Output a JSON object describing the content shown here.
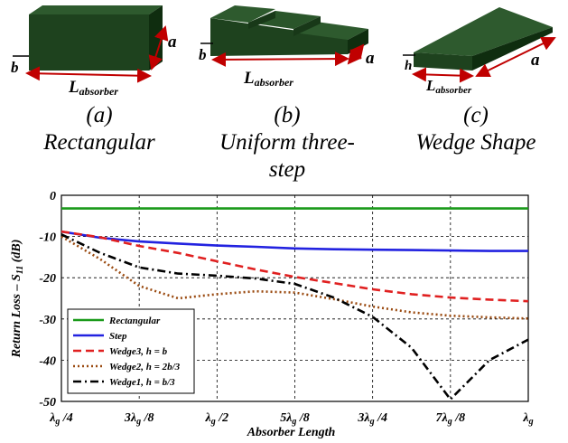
{
  "figures": [
    {
      "letter": "(a)",
      "name": "Rectangular",
      "dims": {
        "height": "b",
        "width": "a",
        "length": "L",
        "length_sub": "absorber"
      }
    },
    {
      "letter": "(b)",
      "name": "Uniform three-",
      "name2": "step",
      "dims": {
        "height": "b",
        "width": "a",
        "length": "L",
        "length_sub": "absorber"
      }
    },
    {
      "letter": "(c)",
      "name": "Wedge Shape",
      "dims": {
        "height": "h",
        "width": "a",
        "length": "L",
        "length_sub": "absorber"
      }
    }
  ],
  "colors": {
    "block_top": "#285028",
    "block_front": "#1a3a1a",
    "block_side": "#102a10",
    "arrow": "#c00000"
  },
  "chart_data": {
    "type": "line",
    "xlabel": "Absorber Length",
    "ylabel": "Return Loss – S11 (dB)",
    "ylabel_main": "Return Loss – S",
    "ylabel_sub": "11",
    "ylabel_unit": " (dB)",
    "x_ticks": [
      {
        "value": 0.25,
        "main": "λ",
        "sub": "g",
        "rest": " /4"
      },
      {
        "value": 0.375,
        "main": "3λ",
        "sub": "g",
        "rest": " /8"
      },
      {
        "value": 0.5,
        "main": "λ",
        "sub": "g",
        "rest": " /2"
      },
      {
        "value": 0.625,
        "main": "5λ",
        "sub": "g",
        "rest": " /8"
      },
      {
        "value": 0.75,
        "main": "3λ",
        "sub": "g",
        "rest": " /4"
      },
      {
        "value": 0.875,
        "main": "7λ",
        "sub": "g",
        "rest": " /8"
      },
      {
        "value": 1.0,
        "main": "λ",
        "sub": "g",
        "rest": ""
      }
    ],
    "y_ticks": [
      0,
      -10,
      -20,
      -30,
      -40,
      -50
    ],
    "xlim": [
      0.25,
      1.0
    ],
    "ylim": [
      -50,
      0
    ],
    "grid": true,
    "legend_position": "bottom-left",
    "x": [
      0.25,
      0.3125,
      0.375,
      0.4375,
      0.5,
      0.5625,
      0.625,
      0.6875,
      0.75,
      0.8125,
      0.875,
      0.9375,
      1.0
    ],
    "series": [
      {
        "name": "Rectangular",
        "color": "#1a9a1a",
        "dash": "solid",
        "values": [
          -3.2,
          -3.2,
          -3.2,
          -3.2,
          -3.2,
          -3.2,
          -3.2,
          -3.2,
          -3.2,
          -3.2,
          -3.2,
          -3.2,
          -3.2
        ]
      },
      {
        "name": "Step",
        "color": "#2222e0",
        "dash": "solid",
        "values": [
          -8.8,
          -10.3,
          -11.2,
          -11.7,
          -12.2,
          -12.5,
          -12.9,
          -13.1,
          -13.2,
          -13.3,
          -13.4,
          -13.5,
          -13.5
        ]
      },
      {
        "name": "Wedge3, h = b",
        "color": "#e02020",
        "dash": "dashed",
        "values": [
          -8.8,
          -10.2,
          -12.3,
          -14.0,
          -16.0,
          -18.0,
          -19.8,
          -21.3,
          -22.8,
          -24.0,
          -24.8,
          -25.3,
          -25.7
        ]
      },
      {
        "name": "Wedge2, h = 2b/3",
        "color": "#9a4a10",
        "dash": "dotted",
        "values": [
          -10.0,
          -15.5,
          -22.0,
          -25.0,
          -24.0,
          -23.3,
          -23.6,
          -25.2,
          -27.0,
          -28.4,
          -29.2,
          -29.6,
          -29.9
        ]
      },
      {
        "name": "Wedge1, h = b/3",
        "color": "#000000",
        "dash": "dashdot",
        "values": [
          -9.5,
          -14.0,
          -17.5,
          -19.0,
          -19.5,
          -20.2,
          -21.5,
          -24.8,
          -29.5,
          -37.0,
          -49.5,
          -40.0,
          -35.0
        ]
      }
    ]
  }
}
